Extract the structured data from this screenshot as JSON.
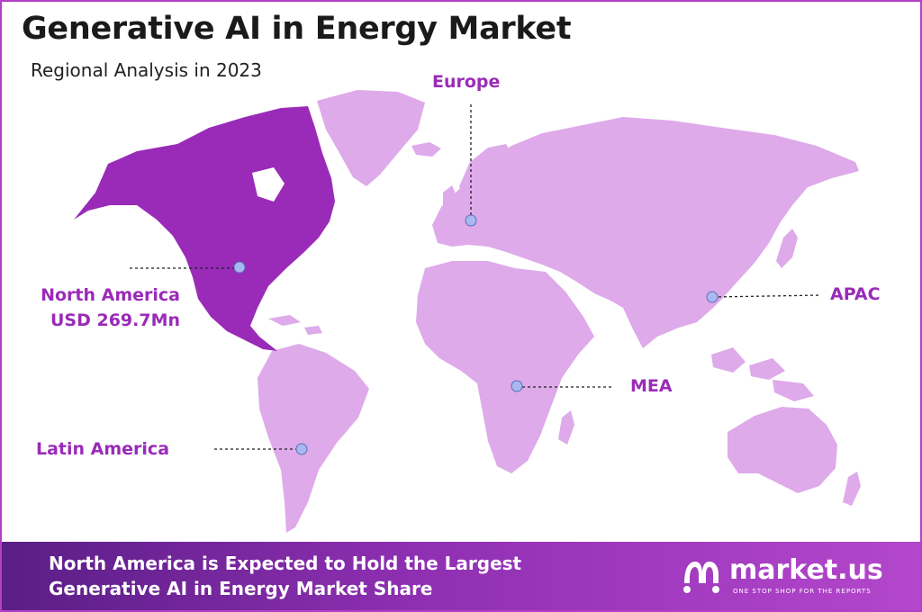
{
  "header": {
    "title": "Generative AI in Energy Market",
    "subtitle": "Regional Analysis in 2023"
  },
  "colors": {
    "highlight_region": "#9a2bb8",
    "other_regions": "#deaaea",
    "marker": "#a9b8f0",
    "footer_start": "#5a1e86",
    "footer_end": "#b447cc"
  },
  "regions": {
    "north_america": {
      "name": "North America",
      "value": "USD 269.7Mn",
      "highlighted": true
    },
    "europe": {
      "name": "Europe"
    },
    "apac": {
      "name": "APAC"
    },
    "mea": {
      "name": "MEA"
    },
    "latin_america": {
      "name": "Latin America"
    }
  },
  "footer": {
    "line1": "North America is Expected to Hold the Largest",
    "line2": "Generative AI in Energy Market Share",
    "brand_name": "market.us",
    "brand_tagline": "ONE STOP SHOP FOR THE REPORTS"
  }
}
